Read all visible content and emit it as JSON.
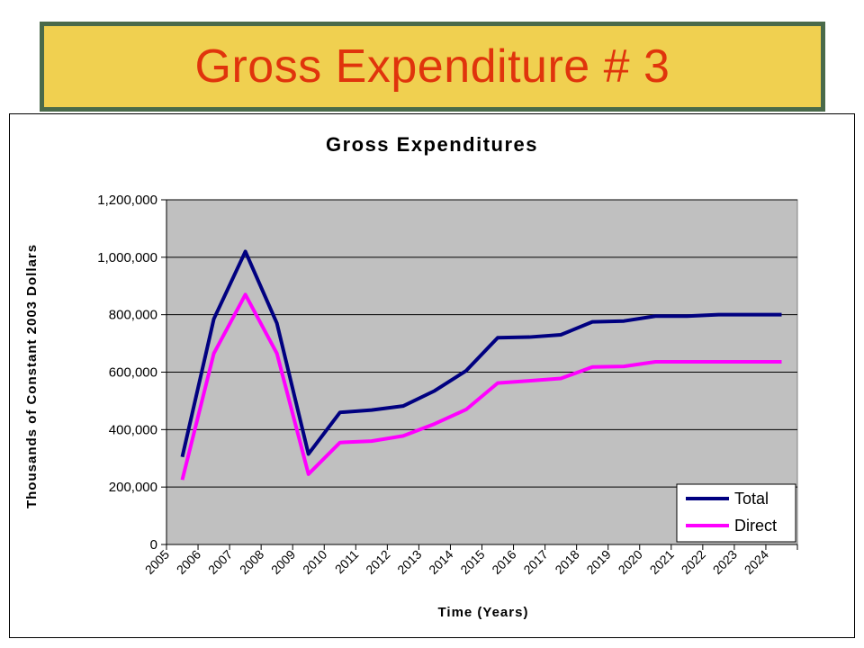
{
  "slide_title": "Gross Expenditure # 3",
  "colors": {
    "banner_bg": "#f0d050",
    "banner_border": "#4a6a4a",
    "title_text": "#e0340c",
    "plot_bg": "#c0c0c0"
  },
  "chart_data": {
    "type": "line",
    "title": "Gross Expenditures",
    "xlabel": "Time (Years)",
    "ylabel": "Thousands of Constant 2003 Dollars",
    "categories": [
      "2005",
      "2006",
      "2007",
      "2008",
      "2009",
      "2010",
      "2011",
      "2012",
      "2013",
      "2014",
      "2015",
      "2016",
      "2017",
      "2018",
      "2019",
      "2020",
      "2021",
      "2022",
      "2023",
      "2024"
    ],
    "yticks": [
      "0",
      "200,000",
      "400,000",
      "600,000",
      "800,000",
      "1,000,000",
      "1,200,000"
    ],
    "ylim": [
      0,
      1200000
    ],
    "grid": true,
    "legend": "bottom-right",
    "series": [
      {
        "name": "Total",
        "color": "#000080",
        "values": [
          305000,
          785000,
          1020000,
          770000,
          315000,
          460000,
          468000,
          482000,
          535000,
          605000,
          720000,
          722000,
          730000,
          775000,
          778000,
          795000,
          795000,
          800000,
          800000,
          800000
        ]
      },
      {
        "name": "Direct",
        "color": "#ff00ff",
        "values": [
          225000,
          665000,
          870000,
          665000,
          245000,
          355000,
          360000,
          378000,
          420000,
          470000,
          562000,
          570000,
          578000,
          618000,
          620000,
          636000,
          636000,
          636000,
          636000,
          636000
        ]
      }
    ]
  }
}
